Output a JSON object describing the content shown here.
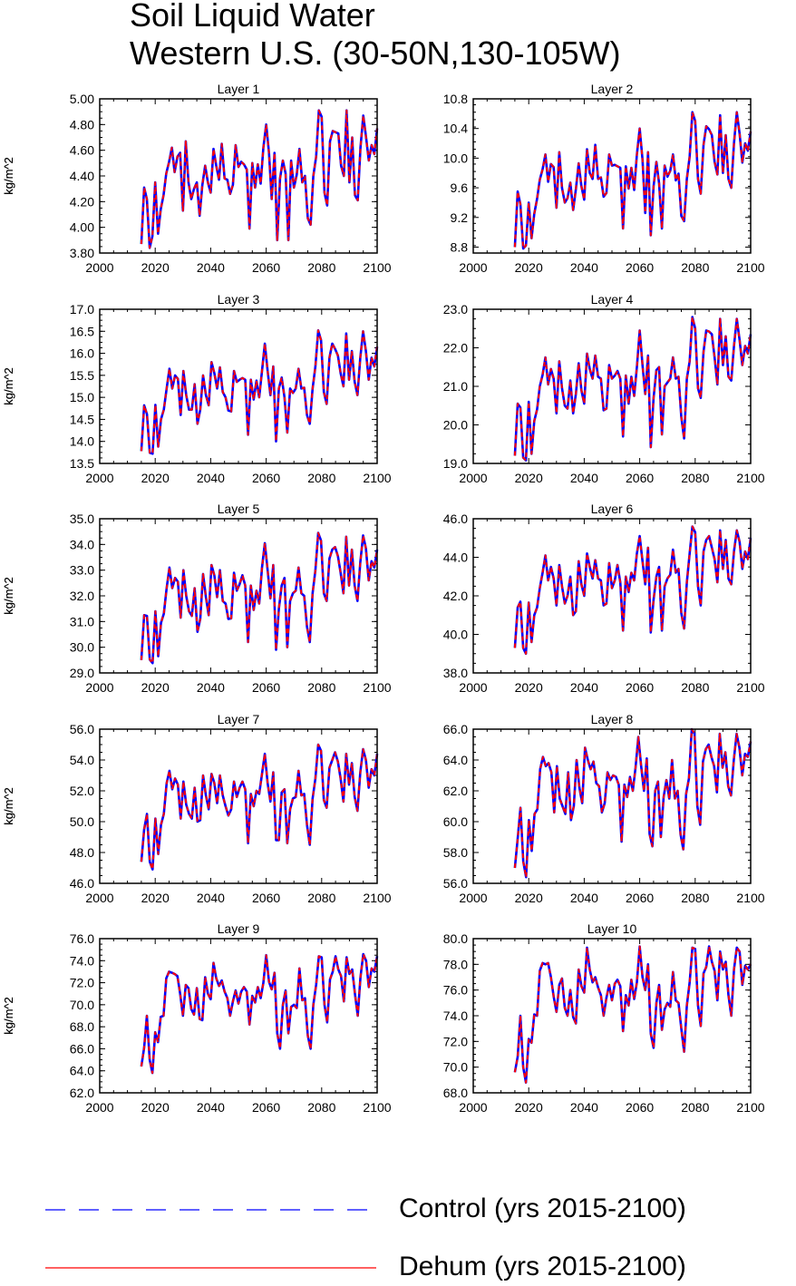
{
  "title": {
    "line1": "Soil Liquid Water",
    "line2": "Western U.S. (30-50N,130-105W)"
  },
  "legend": {
    "control": {
      "label": "Control (yrs 2015-2100)",
      "color": "#0000ff",
      "style": "dashed"
    },
    "dehum": {
      "label": "Dehum (yrs 2015-2100)",
      "color": "#ff0000",
      "style": "solid"
    }
  },
  "chart_data": [
    {
      "type": "line",
      "title": "Layer 1",
      "ylabel": "kg/m^2",
      "xlabel": "",
      "xlim": [
        2000,
        2100
      ],
      "ylim": [
        3.8,
        5.0
      ],
      "xticks": [
        "2000",
        "2020",
        "2040",
        "2060",
        "2080",
        "2100"
      ],
      "yticks": [
        "3.80",
        "4.00",
        "4.20",
        "4.40",
        "4.60",
        "4.80",
        "5.00"
      ],
      "x_start": 2015,
      "x_end": 2100,
      "values": [
        3.87,
        4.31,
        4.22,
        3.84,
        3.93,
        4.35,
        3.95,
        4.14,
        4.25,
        4.42,
        4.51,
        4.62,
        4.43,
        4.55,
        4.58,
        4.13,
        4.67,
        4.35,
        4.22,
        4.3,
        4.35,
        4.09,
        4.33,
        4.48,
        4.35,
        4.27,
        4.61,
        4.48,
        4.37,
        4.65,
        4.38,
        4.37,
        4.26,
        4.33,
        4.64,
        4.47,
        4.51,
        4.49,
        4.45,
        3.99,
        4.5,
        4.31,
        4.49,
        4.34,
        4.62,
        4.8,
        4.58,
        4.22,
        4.58,
        3.9,
        4.38,
        4.52,
        4.42,
        3.9,
        4.52,
        4.31,
        4.41,
        4.61,
        4.35,
        4.4,
        4.07,
        4.02,
        4.4,
        4.55,
        4.91,
        4.86,
        4.27,
        4.17,
        4.67,
        4.75,
        4.74,
        4.73,
        4.48,
        4.4,
        4.91,
        4.35,
        4.7,
        4.25,
        4.21,
        4.62,
        4.87,
        4.7,
        4.52,
        4.64,
        4.57,
        4.77
      ],
      "series": [
        {
          "name": "Control (yrs 2015-2100)",
          "color": "#0000ff"
        },
        {
          "name": "Dehum (yrs 2015-2100)",
          "color": "#ff0000"
        }
      ]
    },
    {
      "type": "line",
      "title": "Layer 2",
      "ylabel": "kg/m^2",
      "xlabel": "",
      "xlim": [
        2000,
        2100
      ],
      "ylim": [
        8.72,
        10.8
      ],
      "xticks": [
        "2000",
        "2020",
        "2040",
        "2060",
        "2080",
        "2100"
      ],
      "yticks": [
        "8.8",
        "9.2",
        "9.6",
        "10.0",
        "10.4",
        "10.8"
      ],
      "x_start": 2015,
      "x_end": 2100,
      "values": [
        8.8,
        9.55,
        9.38,
        8.78,
        8.82,
        9.4,
        8.92,
        9.25,
        9.45,
        9.71,
        9.85,
        10.05,
        9.68,
        9.92,
        9.88,
        9.33,
        10.08,
        9.6,
        9.4,
        9.46,
        9.67,
        9.3,
        9.58,
        9.93,
        9.62,
        9.44,
        10.12,
        9.8,
        9.72,
        10.18,
        9.72,
        9.74,
        9.48,
        9.53,
        10.05,
        9.9,
        9.91,
        9.89,
        9.87,
        9.05,
        9.89,
        9.59,
        9.87,
        9.57,
        10.05,
        10.4,
        9.98,
        9.26,
        10.08,
        8.96,
        9.62,
        9.95,
        9.66,
        9.05,
        9.9,
        9.75,
        9.83,
        10.05,
        9.7,
        9.79,
        9.22,
        9.15,
        9.72,
        10.02,
        10.62,
        10.5,
        9.72,
        9.52,
        10.18,
        10.43,
        10.39,
        10.31,
        9.95,
        9.78,
        10.58,
        9.8,
        10.31,
        9.72,
        9.6,
        10.2,
        10.62,
        10.33,
        9.94,
        10.2,
        10.1,
        10.36
      ],
      "series": [
        {
          "name": "Control (yrs 2015-2100)",
          "color": "#0000ff"
        },
        {
          "name": "Dehum (yrs 2015-2100)",
          "color": "#ff0000"
        }
      ]
    },
    {
      "type": "line",
      "title": "Layer 3",
      "ylabel": "kg/m^2",
      "xlabel": "",
      "xlim": [
        2000,
        2100
      ],
      "ylim": [
        13.5,
        17.0
      ],
      "xticks": [
        "2000",
        "2020",
        "2040",
        "2060",
        "2080",
        "2100"
      ],
      "yticks": [
        "13.5",
        "14.0",
        "14.5",
        "15.0",
        "15.5",
        "16.0",
        "16.5",
        "17.0"
      ],
      "x_start": 2015,
      "x_end": 2100,
      "values": [
        13.78,
        14.82,
        14.62,
        13.74,
        13.72,
        14.83,
        13.88,
        14.5,
        14.72,
        15.2,
        15.65,
        15.2,
        15.5,
        15.42,
        14.6,
        15.6,
        15.05,
        14.72,
        14.72,
        15.3,
        14.4,
        14.72,
        15.5,
        15.05,
        14.82,
        15.8,
        15.55,
        15.2,
        15.68,
        15.12,
        15.0,
        14.7,
        14.68,
        15.6,
        15.35,
        15.4,
        15.44,
        15.4,
        14.15,
        15.4,
        14.95,
        15.38,
        15.0,
        15.6,
        16.22,
        15.6,
        15.05,
        15.7,
        14.0,
        15.2,
        15.45,
        15.0,
        14.2,
        15.2,
        15.1,
        15.2,
        15.65,
        15.2,
        15.22,
        14.6,
        14.4,
        15.2,
        15.7,
        16.52,
        16.3,
        15.12,
        14.85,
        15.9,
        16.22,
        16.1,
        15.95,
        15.55,
        15.25,
        16.45,
        15.4,
        16.05,
        15.35,
        15.05,
        15.9,
        16.5,
        16.05,
        15.4,
        15.9,
        15.7,
        16.15
      ],
      "series": [
        {
          "name": "Control (yrs 2015-2100)",
          "color": "#0000ff"
        },
        {
          "name": "Dehum (yrs 2015-2100)",
          "color": "#ff0000"
        }
      ]
    },
    {
      "type": "line",
      "title": "Layer 4",
      "ylabel": "kg/m^2",
      "xlabel": "",
      "xlim": [
        2000,
        2100
      ],
      "ylim": [
        19.0,
        23.0
      ],
      "xticks": [
        "2000",
        "2020",
        "2040",
        "2060",
        "2080",
        "2100"
      ],
      "yticks": [
        "19.0",
        "20.0",
        "21.0",
        "22.0",
        "23.0"
      ],
      "x_start": 2015,
      "x_end": 2100,
      "values": [
        19.2,
        20.55,
        20.45,
        19.15,
        19.08,
        20.6,
        19.25,
        20.1,
        20.4,
        21.0,
        21.3,
        21.75,
        21.05,
        21.45,
        21.2,
        20.3,
        21.65,
        20.95,
        20.5,
        20.42,
        21.15,
        20.3,
        20.8,
        21.6,
        20.9,
        20.55,
        21.85,
        21.45,
        21.2,
        21.8,
        21.25,
        21.2,
        20.38,
        20.42,
        21.55,
        21.2,
        21.28,
        21.4,
        21.2,
        19.7,
        21.28,
        20.55,
        21.25,
        20.75,
        21.5,
        22.45,
        21.55,
        20.8,
        21.8,
        19.42,
        20.7,
        21.42,
        21.5,
        19.75,
        21.0,
        21.1,
        21.2,
        21.75,
        21.2,
        21.25,
        20.2,
        19.65,
        21.2,
        21.65,
        22.8,
        22.5,
        20.95,
        20.7,
        21.9,
        22.45,
        22.42,
        22.35,
        21.75,
        21.05,
        22.75,
        21.55,
        22.3,
        21.25,
        21.15,
        22.05,
        22.75,
        22.2,
        21.55,
        22.05,
        21.85,
        22.35
      ],
      "series": [
        {
          "name": "Control (yrs 2015-2100)",
          "color": "#0000ff"
        },
        {
          "name": "Dehum (yrs 2015-2100)",
          "color": "#ff0000"
        }
      ]
    },
    {
      "type": "line",
      "title": "Layer 5",
      "ylabel": "kg/m^2",
      "xlabel": "",
      "xlim": [
        2000,
        2100
      ],
      "ylim": [
        29.0,
        35.0
      ],
      "xticks": [
        "2000",
        "2020",
        "2040",
        "2060",
        "2080",
        "2100"
      ],
      "yticks": [
        "29.0",
        "30.0",
        "31.0",
        "32.0",
        "33.0",
        "34.0",
        "35.0"
      ],
      "x_start": 2015,
      "x_end": 2100,
      "values": [
        29.5,
        31.25,
        31.22,
        29.52,
        29.38,
        31.4,
        29.65,
        30.95,
        31.3,
        32.3,
        33.1,
        32.3,
        32.7,
        32.55,
        31.15,
        33.0,
        32.0,
        31.4,
        31.22,
        32.3,
        30.6,
        31.1,
        32.85,
        31.95,
        31.25,
        33.2,
        32.8,
        31.95,
        33.0,
        31.8,
        31.7,
        31.1,
        31.12,
        32.9,
        32.2,
        32.45,
        32.8,
        32.4,
        30.2,
        32.4,
        31.45,
        32.2,
        31.7,
        33.1,
        34.05,
        33.0,
        31.9,
        33.2,
        29.9,
        31.5,
        32.4,
        32.7,
        30.0,
        31.8,
        32.1,
        32.2,
        33.1,
        32.1,
        32.0,
        30.8,
        30.2,
        32.1,
        33.0,
        34.45,
        34.15,
        32.1,
        31.8,
        33.45,
        33.8,
        33.9,
        33.55,
        32.9,
        32.1,
        34.3,
        32.4,
        33.8,
        32.4,
        31.8,
        33.3,
        34.35,
        33.85,
        32.6,
        33.35,
        33.1,
        33.8
      ],
      "series": [
        {
          "name": "Control (yrs 2015-2100)",
          "color": "#0000ff"
        },
        {
          "name": "Dehum (yrs 2015-2100)",
          "color": "#ff0000"
        }
      ]
    },
    {
      "type": "line",
      "title": "Layer 6",
      "ylabel": "kg/m^2",
      "xlabel": "",
      "xlim": [
        2000,
        2100
      ],
      "ylim": [
        38.0,
        46.0
      ],
      "xticks": [
        "2000",
        "2020",
        "2040",
        "2060",
        "2080",
        "2100"
      ],
      "yticks": [
        "38.0",
        "40.0",
        "42.0",
        "44.0",
        "46.0"
      ],
      "x_start": 2015,
      "x_end": 2100,
      "values": [
        39.3,
        41.4,
        41.7,
        39.3,
        39.0,
        41.65,
        39.6,
        41.0,
        41.4,
        42.4,
        43.2,
        44.1,
        42.8,
        43.5,
        42.9,
        41.5,
        43.6,
        42.5,
        41.6,
        42.0,
        43.0,
        41.0,
        41.2,
        43.8,
        42.6,
        42.0,
        44.2,
        43.5,
        42.9,
        43.85,
        42.9,
        42.8,
        41.5,
        41.6,
        43.7,
        42.4,
        42.8,
        43.6,
        42.7,
        40.2,
        43.0,
        42.2,
        43.2,
        42.8,
        44.2,
        45.1,
        43.8,
        42.6,
        44.5,
        40.1,
        41.8,
        43.0,
        43.5,
        40.2,
        42.5,
        42.9,
        43.1,
        44.4,
        43.2,
        43.4,
        41.1,
        40.3,
        42.7,
        44.2,
        45.6,
        45.3,
        42.5,
        41.5,
        44.3,
        44.9,
        45.1,
        44.5,
        43.9,
        42.7,
        45.4,
        43.4,
        44.9,
        42.9,
        42.6,
        44.3,
        45.4,
        44.8,
        43.4,
        44.3,
        43.9,
        45.0
      ],
      "series": [
        {
          "name": "Control (yrs 2015-2100)",
          "color": "#0000ff"
        },
        {
          "name": "Dehum (yrs 2015-2100)",
          "color": "#ff0000"
        }
      ]
    },
    {
      "type": "line",
      "title": "Layer 7",
      "ylabel": "kg/m^2",
      "xlabel": "",
      "xlim": [
        2000,
        2100
      ],
      "ylim": [
        46.0,
        56.0
      ],
      "xticks": [
        "2000",
        "2020",
        "2040",
        "2060",
        "2080",
        "2100"
      ],
      "yticks": [
        "46.0",
        "48.0",
        "50.0",
        "52.0",
        "54.0",
        "56.0"
      ],
      "x_start": 2015,
      "x_end": 2100,
      "values": [
        47.4,
        49.5,
        50.5,
        47.4,
        46.9,
        50.2,
        47.9,
        49.8,
        50.5,
        52.5,
        53.3,
        52.1,
        52.8,
        52.4,
        50.2,
        52.6,
        51.1,
        50.5,
        50.2,
        52.2,
        50.0,
        50.1,
        53.0,
        51.7,
        50.8,
        53.1,
        52.5,
        51.2,
        53.0,
        51.7,
        51.0,
        50.4,
        50.8,
        52.6,
        51.6,
        52.2,
        52.6,
        52.1,
        48.6,
        51.8,
        51.0,
        52.0,
        51.8,
        53.1,
        54.4,
        52.5,
        51.3,
        53.2,
        48.8,
        48.8,
        51.9,
        52.1,
        48.6,
        50.8,
        51.5,
        51.6,
        53.3,
        51.7,
        51.8,
        49.8,
        48.5,
        51.5,
        52.8,
        55.0,
        54.6,
        51.4,
        50.9,
        53.5,
        54.0,
        54.5,
        53.9,
        52.8,
        51.3,
        54.4,
        52.4,
        53.8,
        51.6,
        50.7,
        53.2,
        54.7,
        54.0,
        52.2,
        53.4,
        53.0,
        54.4
      ],
      "series": [
        {
          "name": "Control (yrs 2015-2100)",
          "color": "#0000ff"
        },
        {
          "name": "Dehum (yrs 2015-2100)",
          "color": "#ff0000"
        }
      ]
    },
    {
      "type": "line",
      "title": "Layer 8",
      "ylabel": "kg/m^2",
      "xlabel": "",
      "xlim": [
        2000,
        2100
      ],
      "ylim": [
        56.0,
        66.0
      ],
      "xticks": [
        "2000",
        "2020",
        "2040",
        "2060",
        "2080",
        "2100"
      ],
      "yticks": [
        "56.0",
        "58.0",
        "60.0",
        "62.0",
        "64.0",
        "66.0"
      ],
      "x_start": 2015,
      "x_end": 2100,
      "values": [
        57.0,
        58.9,
        60.9,
        57.4,
        56.4,
        60.1,
        58.1,
        60.5,
        60.8,
        63.4,
        64.2,
        63.6,
        63.8,
        63.2,
        60.6,
        63.6,
        61.5,
        61.0,
        60.5,
        63.2,
        60.1,
        61.0,
        64.0,
        62.2,
        61.2,
        64.8,
        64.0,
        63.4,
        63.9,
        62.5,
        62.3,
        60.6,
        61.2,
        63.2,
        62.7,
        63.0,
        62.9,
        62.4,
        58.7,
        62.4,
        61.6,
        62.9,
        62.0,
        63.5,
        65.5,
        63.6,
        62.0,
        64.1,
        59.2,
        58.4,
        62.0,
        62.6,
        59.0,
        61.6,
        62.7,
        61.5,
        64.0,
        61.5,
        62.0,
        59.2,
        58.2,
        61.8,
        62.8,
        66.0,
        65.7,
        61.0,
        59.8,
        63.9,
        64.7,
        65.0,
        64.2,
        63.6,
        61.9,
        65.7,
        63.5,
        64.5,
        62.3,
        61.7,
        64.0,
        65.7,
        64.8,
        63.0,
        64.4,
        64.2,
        65.2
      ],
      "series": [
        {
          "name": "Control (yrs 2015-2100)",
          "color": "#0000ff"
        },
        {
          "name": "Dehum (yrs 2015-2100)",
          "color": "#ff0000"
        }
      ]
    },
    {
      "type": "line",
      "title": "Layer 9",
      "ylabel": "kg/m^2",
      "xlabel": "",
      "xlim": [
        2000,
        2100
      ],
      "ylim": [
        62.0,
        76.0
      ],
      "xticks": [
        "2000",
        "2020",
        "2040",
        "2060",
        "2080",
        "2100"
      ],
      "yticks": [
        "62.0",
        "64.0",
        "66.0",
        "68.0",
        "70.0",
        "72.0",
        "74.0",
        "76.0"
      ],
      "x_start": 2015,
      "x_end": 2100,
      "values": [
        64.4,
        66.1,
        69.0,
        65.0,
        63.8,
        67.5,
        66.6,
        68.9,
        69.0,
        72.4,
        73.0,
        72.9,
        72.8,
        72.6,
        71.0,
        69.0,
        71.8,
        71.5,
        69.6,
        69.1,
        71.5,
        68.7,
        68.6,
        72.5,
        71.0,
        70.5,
        73.8,
        72.4,
        71.7,
        72.2,
        71.2,
        70.6,
        69.0,
        70.3,
        71.3,
        70.1,
        71.2,
        71.6,
        71.2,
        68.2,
        70.8,
        70.2,
        71.6,
        70.6,
        72.0,
        74.5,
        72.1,
        71.4,
        72.9,
        67.4,
        66.0,
        70.0,
        71.3,
        67.4,
        69.8,
        70.0,
        69.7,
        73.3,
        70.4,
        70.6,
        67.2,
        66.0,
        70.0,
        71.8,
        74.4,
        74.3,
        70.0,
        68.4,
        72.3,
        73.0,
        74.4,
        73.2,
        72.6,
        70.3,
        74.3,
        72.8,
        73.2,
        71.0,
        69.0,
        72.5,
        74.6,
        74.0,
        71.6,
        73.3,
        73.0,
        74.4
      ],
      "series": [
        {
          "name": "Control (yrs 2015-2100)",
          "color": "#0000ff"
        },
        {
          "name": "Dehum (yrs 2015-2100)",
          "color": "#ff0000"
        }
      ]
    },
    {
      "type": "line",
      "title": "Layer 10",
      "ylabel": "kg/m^2",
      "xlabel": "",
      "xlim": [
        2000,
        2100
      ],
      "ylim": [
        68.0,
        80.0
      ],
      "xticks": [
        "2000",
        "2020",
        "2040",
        "2060",
        "2080",
        "2100"
      ],
      "yticks": [
        "68.0",
        "70.0",
        "72.0",
        "74.0",
        "76.0",
        "78.0",
        "80.0"
      ],
      "x_start": 2015,
      "x_end": 2100,
      "values": [
        69.6,
        70.8,
        74.0,
        70.0,
        68.8,
        72.2,
        71.9,
        74.1,
        74.0,
        77.5,
        78.1,
        78.0,
        78.1,
        77.0,
        75.5,
        74.3,
        76.4,
        76.9,
        74.6,
        74.0,
        76.0,
        73.9,
        73.4,
        77.6,
        76.3,
        75.8,
        79.3,
        77.6,
        76.6,
        77.0,
        76.2,
        75.6,
        74.0,
        75.4,
        76.4,
        75.2,
        76.5,
        76.8,
        76.3,
        72.8,
        75.6,
        74.8,
        76.8,
        75.3,
        76.6,
        79.4,
        77.0,
        76.0,
        78.0,
        72.6,
        71.5,
        75.0,
        76.4,
        72.9,
        74.5,
        75.0,
        74.7,
        77.4,
        75.2,
        75.0,
        73.0,
        71.2,
        74.8,
        76.6,
        79.3,
        79.2,
        74.8,
        73.2,
        77.3,
        77.8,
        79.4,
        78.2,
        77.5,
        75.2,
        79.0,
        77.6,
        78.2,
        75.6,
        74.0,
        77.6,
        79.3,
        79.0,
        76.4,
        77.9,
        77.6,
        78.0
      ],
      "series": [
        {
          "name": "Control (yrs 2015-2100)",
          "color": "#0000ff"
        },
        {
          "name": "Dehum (yrs 2015-2100)",
          "color": "#ff0000"
        }
      ]
    }
  ]
}
